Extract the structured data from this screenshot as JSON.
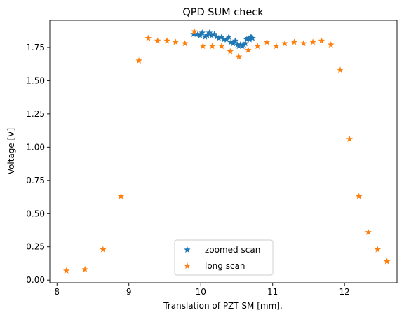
{
  "chart_data": {
    "type": "scatter",
    "title": "QPD SUM check",
    "xlabel": "Translation of PZT SM [mm].",
    "ylabel": "Voltage [V]",
    "xlim": [
      7.9,
      12.73
    ],
    "ylim": [
      -0.02,
      1.955
    ],
    "xticks": [
      8,
      9,
      10,
      11,
      12
    ],
    "xtick_labels": [
      "8",
      "9",
      "10",
      "11",
      "12"
    ],
    "yticks": [
      0.0,
      0.25,
      0.5,
      0.75,
      1.0,
      1.25,
      1.5,
      1.75
    ],
    "ytick_labels": [
      "0.00",
      "0.25",
      "0.50",
      "0.75",
      "1.00",
      "1.25",
      "1.50",
      "1.75"
    ],
    "grid": false,
    "legend_position": "lower-center",
    "series": [
      {
        "name": "zoomed scan",
        "color": "#1f77b4",
        "marker": "star",
        "x": [
          9.9,
          9.93,
          9.96,
          9.99,
          10.02,
          10.06,
          10.09,
          10.12,
          10.15,
          10.19,
          10.22,
          10.25,
          10.29,
          10.32,
          10.36,
          10.39,
          10.42,
          10.45,
          10.48,
          10.51,
          10.53,
          10.55,
          10.58,
          10.6,
          10.62,
          10.64,
          10.66,
          10.68,
          10.7,
          10.72
        ],
        "y": [
          1.85,
          1.85,
          1.85,
          1.84,
          1.86,
          1.83,
          1.84,
          1.86,
          1.84,
          1.85,
          1.83,
          1.82,
          1.83,
          1.81,
          1.81,
          1.83,
          1.79,
          1.78,
          1.8,
          1.77,
          1.76,
          1.77,
          1.76,
          1.77,
          1.78,
          1.81,
          1.82,
          1.81,
          1.83,
          1.82
        ]
      },
      {
        "name": "long scan",
        "color": "#ff7f0e",
        "marker": "star",
        "x": [
          8.13,
          8.39,
          8.64,
          8.89,
          9.14,
          9.27,
          9.4,
          9.53,
          9.65,
          9.78,
          9.91,
          10.03,
          10.16,
          10.29,
          10.41,
          10.53,
          10.66,
          10.79,
          10.92,
          11.05,
          11.17,
          11.3,
          11.43,
          11.56,
          11.68,
          11.81,
          11.94,
          12.07,
          12.2,
          12.33,
          12.46,
          12.59
        ],
        "y": [
          0.07,
          0.08,
          0.23,
          0.63,
          1.65,
          1.82,
          1.8,
          1.8,
          1.79,
          1.78,
          1.87,
          1.76,
          1.76,
          1.76,
          1.72,
          1.68,
          1.73,
          1.76,
          1.79,
          1.76,
          1.78,
          1.79,
          1.78,
          1.79,
          1.8,
          1.77,
          1.58,
          1.06,
          0.63,
          0.36,
          0.23,
          0.14
        ]
      }
    ]
  }
}
